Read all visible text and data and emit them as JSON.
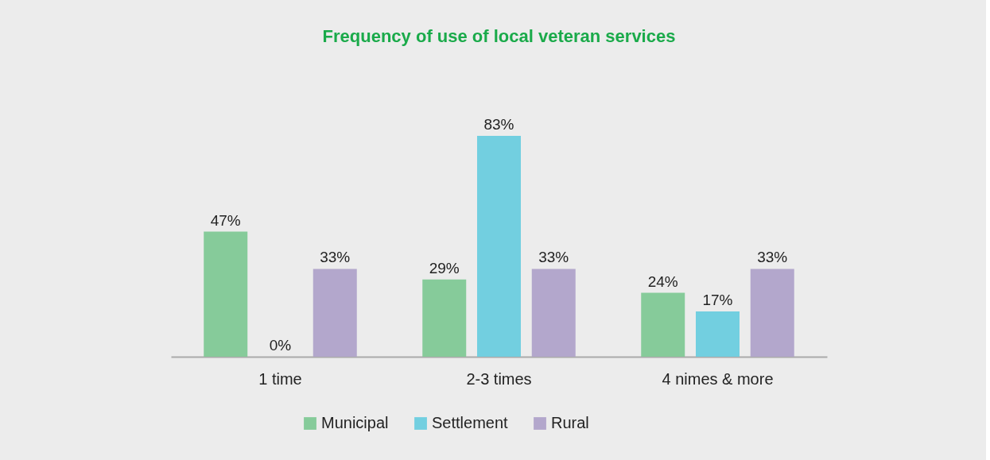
{
  "chart_data": {
    "type": "bar",
    "title": "Frequency of use of local veteran services",
    "categories": [
      "1 time",
      "2-3 times",
      "4 nimes & more"
    ],
    "series": [
      {
        "name": "Municipal",
        "color": "#86cb9a",
        "values": [
          47,
          29,
          24
        ],
        "value_labels": [
          "47%",
          "29%",
          "24%"
        ]
      },
      {
        "name": "Settlement",
        "color": "#72cfe0",
        "values": [
          0,
          83,
          17
        ],
        "value_labels": [
          "0%",
          "83%",
          "17%"
        ]
      },
      {
        "name": "Rural",
        "color": "#b3a7cc",
        "values": [
          33,
          33,
          33
        ],
        "value_labels": [
          "33%",
          "33%",
          "33%"
        ]
      }
    ],
    "legend": "bottom",
    "grid": false
  }
}
